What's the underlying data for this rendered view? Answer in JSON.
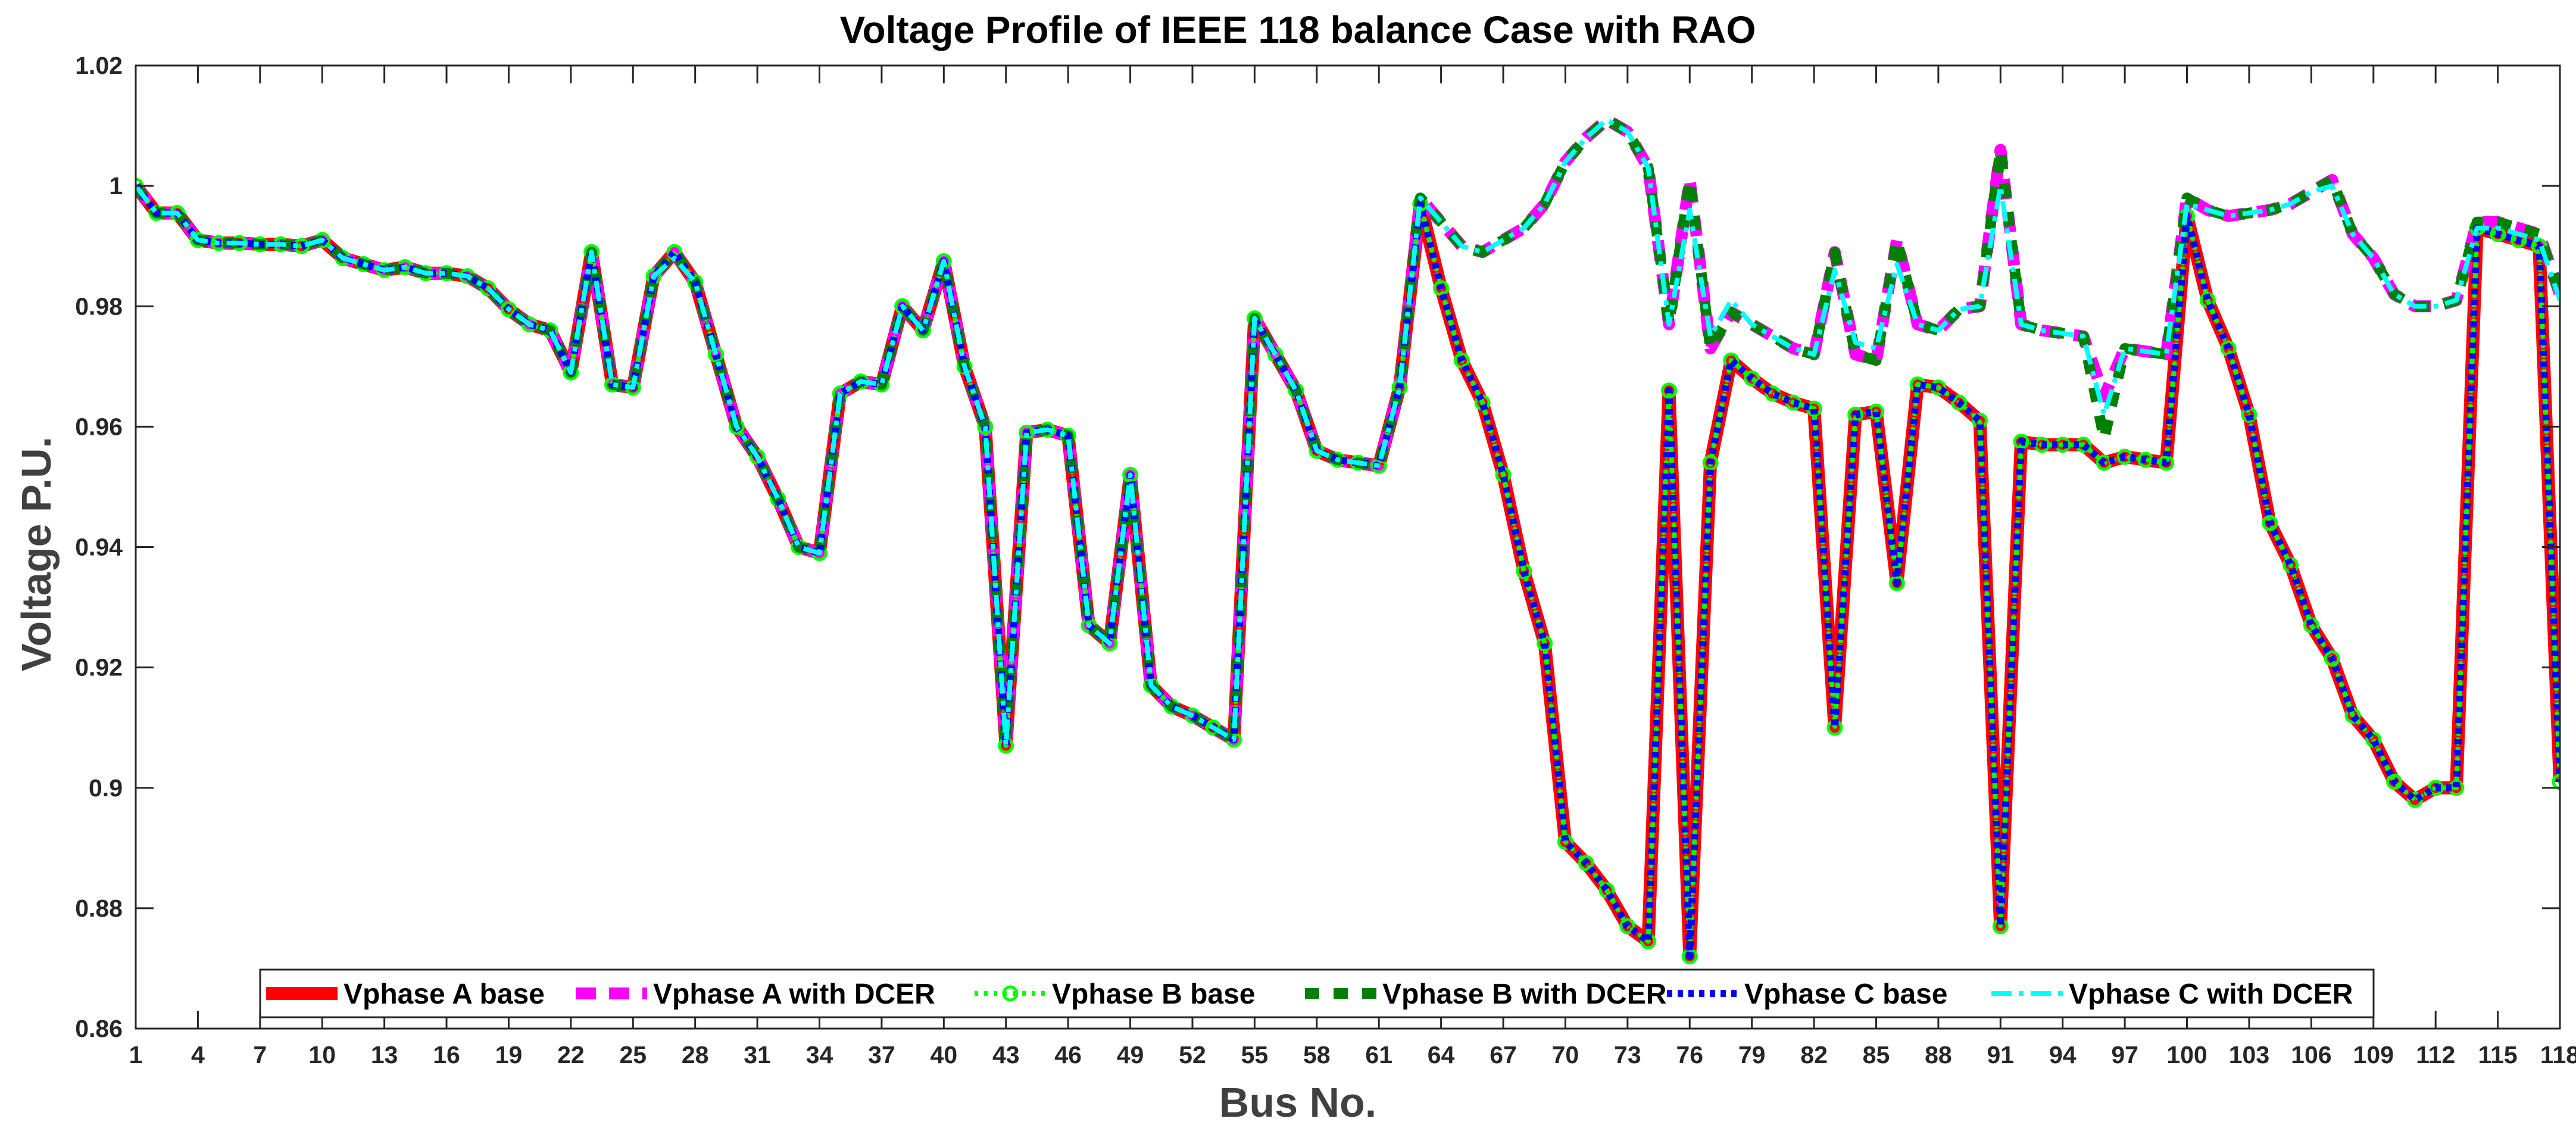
{
  "chart_data": {
    "type": "line",
    "title": "Voltage Profile of IEEE 118 balance Case with RAO",
    "xlabel": "Bus No.",
    "ylabel": "Voltage P.U.",
    "xlim": [
      1,
      118
    ],
    "ylim": [
      0.86,
      1.02
    ],
    "xticks": [
      1,
      4,
      7,
      10,
      13,
      16,
      19,
      22,
      25,
      28,
      31,
      34,
      37,
      40,
      43,
      46,
      49,
      52,
      55,
      58,
      61,
      64,
      67,
      70,
      73,
      76,
      79,
      82,
      85,
      88,
      91,
      94,
      97,
      100,
      103,
      106,
      109,
      112,
      115,
      118
    ],
    "xtick_labels": [
      "1",
      "4",
      "7",
      "10",
      "13",
      "16",
      "19",
      "22",
      "25",
      "28",
      "31",
      "34",
      "37",
      "40",
      "43",
      "46",
      "49",
      "52",
      "55",
      "58",
      "61",
      "64",
      "67",
      "70",
      "73",
      "76",
      "79",
      "82",
      "85",
      "88",
      "91",
      "94",
      "97",
      "100",
      "103",
      "106",
      "109",
      "112",
      "115",
      "118"
    ],
    "yticks": [
      0.86,
      0.88,
      0.9,
      0.92,
      0.94,
      0.96,
      0.98,
      1.0,
      1.02
    ],
    "ytick_labels": [
      "0.86",
      "0.88",
      "0.9",
      "0.92",
      "0.94",
      "0.96",
      "0.98",
      "1",
      "1.02"
    ],
    "grid": false,
    "legend_position": "bottom",
    "x": [
      1,
      2,
      3,
      4,
      5,
      6,
      7,
      8,
      9,
      10,
      11,
      12,
      13,
      14,
      15,
      16,
      17,
      18,
      19,
      20,
      21,
      22,
      23,
      24,
      25,
      26,
      27,
      28,
      29,
      30,
      31,
      32,
      33,
      34,
      35,
      36,
      37,
      38,
      39,
      40,
      41,
      42,
      43,
      44,
      45,
      46,
      47,
      48,
      49,
      50,
      51,
      52,
      53,
      54,
      55,
      56,
      57,
      58,
      59,
      60,
      61,
      62,
      63,
      64,
      65,
      66,
      67,
      68,
      69,
      70,
      71,
      72,
      73,
      74,
      75,
      76,
      77,
      78,
      79,
      80,
      81,
      82,
      83,
      84,
      85,
      86,
      87,
      88,
      89,
      90,
      91,
      92,
      93,
      94,
      95,
      96,
      97,
      98,
      99,
      100,
      101,
      102,
      103,
      104,
      105,
      106,
      107,
      108,
      109,
      110,
      111,
      112,
      113,
      114,
      115,
      116,
      117,
      118
    ],
    "series": [
      {
        "name": "Vphase A base",
        "style": "solid-thick",
        "color": "#ff0000",
        "values": [
          1.0,
          0.9955,
          0.9955,
          0.991,
          0.9905,
          0.9905,
          0.9903,
          0.9903,
          0.99,
          0.991,
          0.988,
          0.987,
          0.986,
          0.9865,
          0.9855,
          0.9855,
          0.985,
          0.983,
          0.9795,
          0.977,
          0.976,
          0.969,
          0.989,
          0.967,
          0.9665,
          0.985,
          0.989,
          0.984,
          0.972,
          0.96,
          0.955,
          0.948,
          0.94,
          0.939,
          0.9655,
          0.9675,
          0.967,
          0.98,
          0.976,
          0.9875,
          0.97,
          0.96,
          0.907,
          0.959,
          0.9595,
          0.9585,
          0.927,
          0.924,
          0.952,
          0.917,
          0.9135,
          0.912,
          0.91,
          0.908,
          0.978,
          0.972,
          0.966,
          0.956,
          0.9545,
          0.954,
          0.9535,
          0.9665,
          0.997,
          0.983,
          0.971,
          0.964,
          0.952,
          0.936,
          0.924,
          0.891,
          0.8875,
          0.883,
          0.877,
          0.8745,
          0.966,
          0.872,
          0.954,
          0.971,
          0.968,
          0.9655,
          0.964,
          0.963,
          0.91,
          0.962,
          0.9625,
          0.934,
          0.967,
          0.9665,
          0.964,
          0.961,
          0.877,
          0.9575,
          0.957,
          0.957,
          0.957,
          0.954,
          0.955,
          0.9545,
          0.954,
          0.995,
          0.981,
          0.973,
          0.962,
          0.944,
          0.937,
          0.927,
          0.9215,
          0.912,
          0.908,
          0.901,
          0.898,
          0.9,
          0.9,
          0.993,
          0.992,
          0.991,
          0.99,
          0.901
        ]
      },
      {
        "name": "Vphase A with DCER",
        "style": "dashed-thick",
        "color": "#ff00ff",
        "values": [
          1.0,
          0.9955,
          0.9955,
          0.991,
          0.9905,
          0.9905,
          0.9903,
          0.9903,
          0.99,
          0.991,
          0.988,
          0.987,
          0.986,
          0.9865,
          0.9855,
          0.9855,
          0.985,
          0.983,
          0.9795,
          0.977,
          0.976,
          0.969,
          0.989,
          0.967,
          0.9665,
          0.985,
          0.989,
          0.984,
          0.972,
          0.96,
          0.955,
          0.948,
          0.94,
          0.939,
          0.9655,
          0.9675,
          0.967,
          0.98,
          0.976,
          0.9875,
          0.97,
          0.96,
          0.907,
          0.959,
          0.9595,
          0.9585,
          0.927,
          0.924,
          0.952,
          0.917,
          0.9135,
          0.912,
          0.91,
          0.908,
          0.978,
          0.972,
          0.966,
          0.956,
          0.9545,
          0.954,
          0.9535,
          0.9665,
          0.998,
          0.994,
          0.99,
          0.989,
          0.991,
          0.993,
          0.997,
          1.004,
          1.008,
          1.011,
          1.009,
          1.003,
          0.977,
          1.001,
          0.973,
          0.979,
          0.977,
          0.975,
          0.973,
          0.972,
          0.989,
          0.972,
          0.971,
          0.991,
          0.977,
          0.976,
          0.9795,
          0.98,
          1.006,
          0.977,
          0.976,
          0.9755,
          0.975,
          0.965,
          0.973,
          0.9725,
          0.972,
          0.998,
          0.996,
          0.995,
          0.9955,
          0.996,
          0.997,
          0.999,
          1.001,
          0.992,
          0.988,
          0.982,
          0.98,
          0.98,
          0.981,
          0.994,
          0.994,
          0.993,
          0.992,
          0.982
        ]
      },
      {
        "name": "Vphase B base",
        "style": "dotted-circles",
        "color": "#00ff00",
        "values": [
          1.0,
          0.9955,
          0.9955,
          0.991,
          0.9905,
          0.9905,
          0.9903,
          0.9903,
          0.99,
          0.991,
          0.988,
          0.987,
          0.986,
          0.9865,
          0.9855,
          0.9855,
          0.985,
          0.983,
          0.9795,
          0.977,
          0.976,
          0.969,
          0.989,
          0.967,
          0.9665,
          0.985,
          0.989,
          0.984,
          0.972,
          0.96,
          0.955,
          0.948,
          0.94,
          0.939,
          0.9655,
          0.9675,
          0.967,
          0.98,
          0.976,
          0.9875,
          0.97,
          0.96,
          0.907,
          0.959,
          0.9595,
          0.9585,
          0.927,
          0.924,
          0.952,
          0.917,
          0.9135,
          0.912,
          0.91,
          0.908,
          0.978,
          0.972,
          0.966,
          0.956,
          0.9545,
          0.954,
          0.9535,
          0.9665,
          0.997,
          0.983,
          0.971,
          0.964,
          0.952,
          0.936,
          0.924,
          0.891,
          0.8875,
          0.883,
          0.877,
          0.8745,
          0.966,
          0.872,
          0.954,
          0.971,
          0.968,
          0.9655,
          0.964,
          0.963,
          0.91,
          0.962,
          0.9625,
          0.934,
          0.967,
          0.9665,
          0.964,
          0.961,
          0.877,
          0.9575,
          0.957,
          0.957,
          0.957,
          0.954,
          0.955,
          0.9545,
          0.954,
          0.995,
          0.981,
          0.973,
          0.962,
          0.944,
          0.937,
          0.927,
          0.9215,
          0.912,
          0.908,
          0.901,
          0.898,
          0.9,
          0.9,
          0.993,
          0.992,
          0.991,
          0.99,
          0.901
        ]
      },
      {
        "name": "Vphase B with DCER",
        "style": "dashed-square",
        "color": "#007f00",
        "values": [
          1.0,
          0.9955,
          0.9955,
          0.991,
          0.9905,
          0.9905,
          0.9903,
          0.9903,
          0.99,
          0.991,
          0.988,
          0.987,
          0.986,
          0.9865,
          0.9855,
          0.9855,
          0.985,
          0.983,
          0.9795,
          0.977,
          0.976,
          0.969,
          0.989,
          0.967,
          0.9665,
          0.985,
          0.989,
          0.984,
          0.972,
          0.96,
          0.955,
          0.948,
          0.94,
          0.939,
          0.9655,
          0.9675,
          0.967,
          0.98,
          0.976,
          0.9875,
          0.97,
          0.96,
          0.907,
          0.959,
          0.9595,
          0.9585,
          0.927,
          0.924,
          0.952,
          0.917,
          0.9135,
          0.912,
          0.91,
          0.908,
          0.978,
          0.972,
          0.966,
          0.956,
          0.9545,
          0.954,
          0.9535,
          0.9665,
          0.998,
          0.994,
          0.99,
          0.989,
          0.991,
          0.993,
          0.997,
          1.004,
          1.008,
          1.011,
          1.009,
          1.003,
          0.977,
          1.001,
          0.973,
          0.979,
          0.977,
          0.975,
          0.973,
          0.972,
          0.989,
          0.972,
          0.971,
          0.991,
          0.977,
          0.976,
          0.9795,
          0.98,
          1.006,
          0.977,
          0.976,
          0.9755,
          0.975,
          0.958,
          0.973,
          0.9725,
          0.972,
          0.998,
          0.996,
          0.995,
          0.9955,
          0.996,
          0.997,
          0.999,
          1.001,
          0.992,
          0.988,
          0.982,
          0.98,
          0.98,
          0.981,
          0.994,
          0.994,
          0.993,
          0.992,
          0.982
        ]
      },
      {
        "name": "Vphase C base",
        "style": "dotted-thick",
        "color": "#0000ff",
        "values": [
          1.0,
          0.9955,
          0.9955,
          0.991,
          0.9905,
          0.9905,
          0.9903,
          0.9903,
          0.99,
          0.991,
          0.988,
          0.987,
          0.986,
          0.9865,
          0.9855,
          0.9855,
          0.985,
          0.983,
          0.9795,
          0.977,
          0.976,
          0.969,
          0.989,
          0.967,
          0.9665,
          0.985,
          0.989,
          0.984,
          0.972,
          0.96,
          0.955,
          0.948,
          0.94,
          0.939,
          0.9655,
          0.9675,
          0.967,
          0.98,
          0.976,
          0.9875,
          0.97,
          0.96,
          0.907,
          0.959,
          0.9595,
          0.9585,
          0.927,
          0.924,
          0.952,
          0.917,
          0.9135,
          0.912,
          0.91,
          0.908,
          0.978,
          0.972,
          0.966,
          0.956,
          0.9545,
          0.954,
          0.9535,
          0.9665,
          0.997,
          0.983,
          0.971,
          0.964,
          0.952,
          0.936,
          0.924,
          0.891,
          0.8875,
          0.883,
          0.877,
          0.8745,
          0.966,
          0.872,
          0.954,
          0.971,
          0.968,
          0.9655,
          0.964,
          0.963,
          0.91,
          0.962,
          0.9625,
          0.934,
          0.967,
          0.9665,
          0.964,
          0.961,
          0.877,
          0.9575,
          0.957,
          0.957,
          0.957,
          0.954,
          0.955,
          0.9545,
          0.954,
          0.995,
          0.981,
          0.973,
          0.962,
          0.944,
          0.937,
          0.927,
          0.9215,
          0.912,
          0.908,
          0.901,
          0.898,
          0.9,
          0.9,
          0.993,
          0.992,
          0.991,
          0.99,
          0.901
        ]
      },
      {
        "name": "Vphase C with DCER",
        "style": "dashdot",
        "color": "#00ffff",
        "values": [
          1.0,
          0.9955,
          0.9955,
          0.991,
          0.9905,
          0.9905,
          0.9903,
          0.9903,
          0.99,
          0.991,
          0.988,
          0.987,
          0.986,
          0.9865,
          0.9855,
          0.9855,
          0.985,
          0.983,
          0.9795,
          0.977,
          0.976,
          0.969,
          0.989,
          0.967,
          0.9665,
          0.985,
          0.988,
          0.984,
          0.972,
          0.96,
          0.955,
          0.948,
          0.94,
          0.939,
          0.9655,
          0.9675,
          0.967,
          0.98,
          0.976,
          0.9875,
          0.97,
          0.96,
          0.907,
          0.959,
          0.9595,
          0.9585,
          0.927,
          0.924,
          0.952,
          0.917,
          0.9135,
          0.912,
          0.91,
          0.908,
          0.978,
          0.972,
          0.966,
          0.956,
          0.9545,
          0.954,
          0.9535,
          0.9665,
          0.998,
          0.994,
          0.99,
          0.989,
          0.991,
          0.993,
          0.997,
          1.004,
          1.008,
          1.011,
          1.009,
          1.003,
          0.977,
          0.996,
          0.975,
          0.981,
          0.977,
          0.975,
          0.973,
          0.972,
          0.986,
          0.974,
          0.973,
          0.987,
          0.977,
          0.976,
          0.9795,
          0.98,
          1.0,
          0.977,
          0.976,
          0.9755,
          0.975,
          0.962,
          0.973,
          0.9725,
          0.972,
          0.997,
          0.996,
          0.995,
          0.9955,
          0.996,
          0.997,
          0.999,
          1.0,
          0.992,
          0.988,
          0.982,
          0.98,
          0.98,
          0.981,
          0.993,
          0.993,
          0.992,
          0.991,
          0.981
        ]
      }
    ]
  }
}
